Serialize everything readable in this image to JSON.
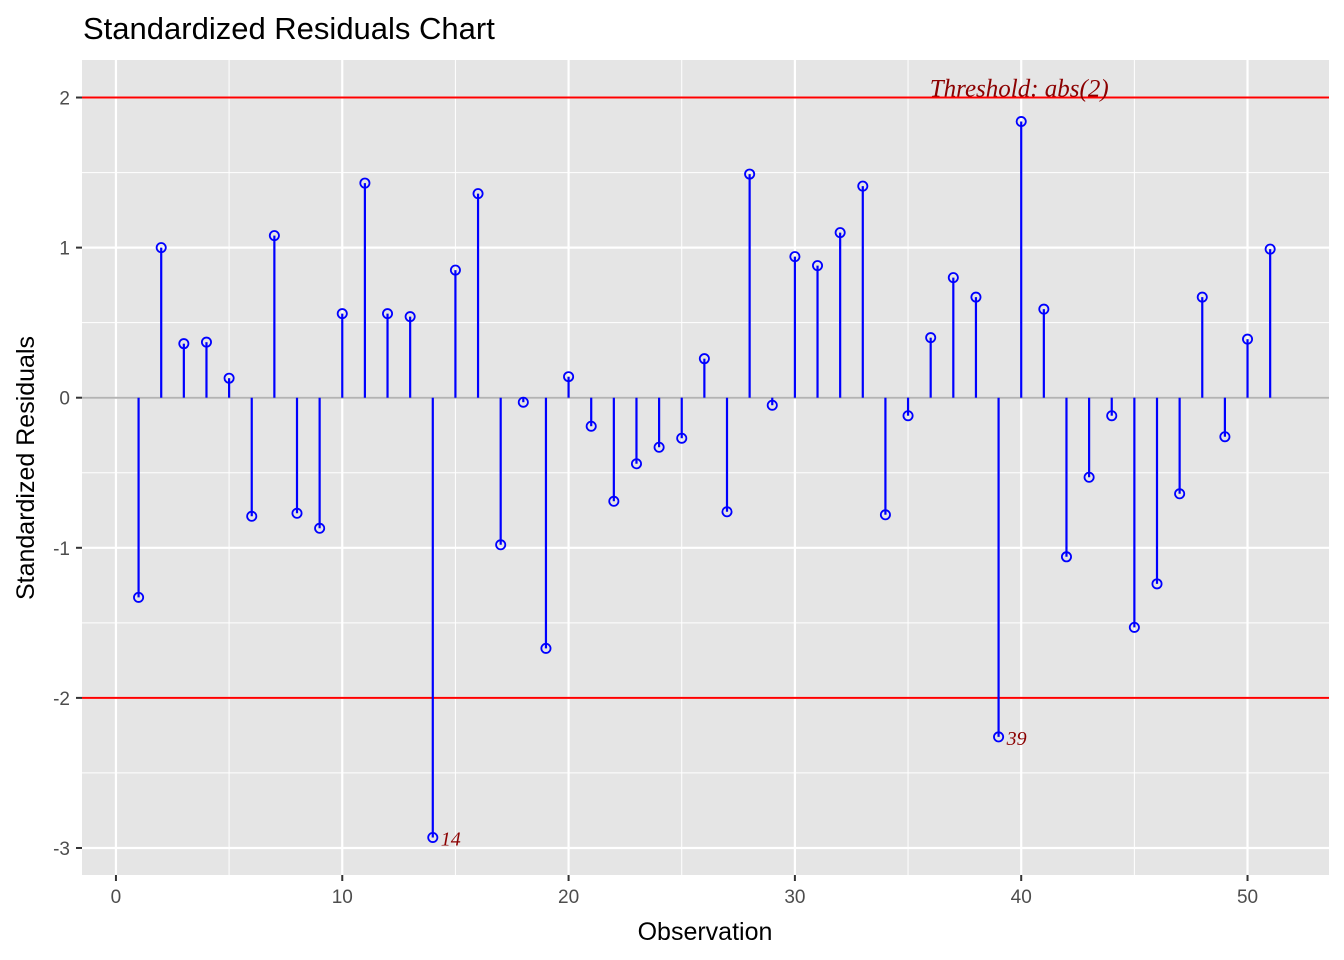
{
  "chart_data": {
    "type": "lollipop",
    "title": "Standardized Residuals Chart",
    "xlabel": "Observation",
    "ylabel": "Standardized Residuals",
    "xlim": [
      -1.5,
      53.6
    ],
    "ylim": [
      -3.18,
      2.25
    ],
    "xticks": [
      0,
      10,
      20,
      30,
      40,
      50
    ],
    "xtick_labels": [
      "0",
      "10",
      "20",
      "30",
      "40",
      "50"
    ],
    "yticks": [
      2,
      1,
      0,
      -1,
      -2,
      -3
    ],
    "ytick_labels": [
      "2",
      "1",
      "0",
      "-1",
      "-2",
      "-3"
    ],
    "grid": true,
    "threshold": 2,
    "threshold_label": "Threshold: abs(2)",
    "x": [
      1,
      2,
      3,
      4,
      5,
      6,
      7,
      8,
      9,
      10,
      11,
      12,
      13,
      14,
      15,
      16,
      17,
      18,
      19,
      20,
      21,
      22,
      23,
      24,
      25,
      26,
      27,
      28,
      29,
      30,
      31,
      32,
      33,
      34,
      35,
      36,
      37,
      38,
      39,
      40,
      41,
      42,
      43,
      44,
      45,
      46,
      47,
      48,
      49,
      50,
      51
    ],
    "values": [
      -1.33,
      1.0,
      0.36,
      0.37,
      0.13,
      -0.79,
      1.08,
      -0.77,
      -0.87,
      0.56,
      1.43,
      0.56,
      0.54,
      -2.93,
      0.85,
      1.36,
      -0.98,
      -0.03,
      -1.67,
      0.14,
      -0.19,
      -0.69,
      -0.44,
      -0.33,
      -0.27,
      0.26,
      -0.76,
      1.49,
      -0.05,
      0.94,
      0.88,
      1.1,
      1.41,
      -0.78,
      -0.12,
      0.4,
      0.8,
      0.67,
      -2.26,
      1.84,
      0.59,
      -1.06,
      -0.53,
      -0.12,
      -1.53,
      -1.24,
      -0.64,
      0.67,
      -0.26,
      0.39,
      0.99
    ],
    "outlier_labels": [
      {
        "x": 14,
        "label": "14"
      },
      {
        "x": 39,
        "label": "39"
      }
    ],
    "colors": {
      "stem": "#0000ff",
      "threshold": "#ff0000",
      "annotation": "#8b0000",
      "panel": "#e5e5e5",
      "grid": "#ffffff",
      "zero_line": "#b3b3b3"
    }
  }
}
